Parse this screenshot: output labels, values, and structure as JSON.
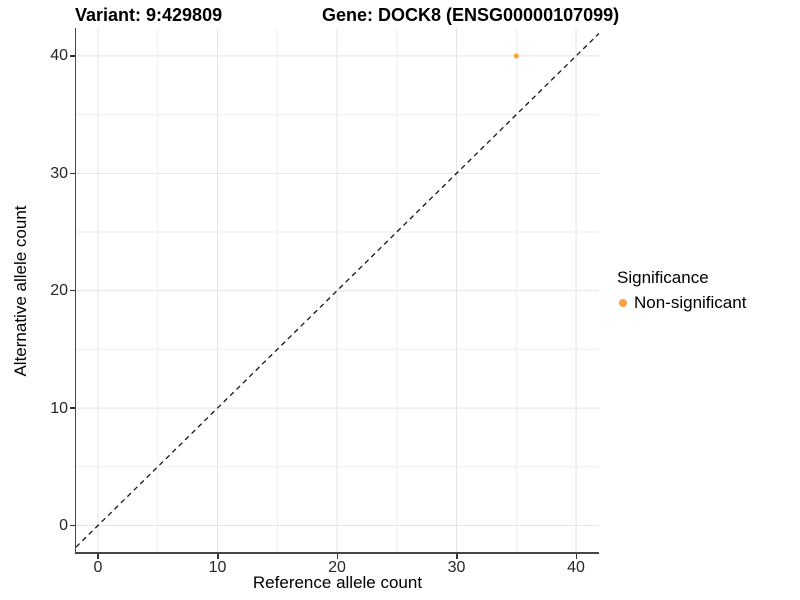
{
  "header": {
    "title_left": "Variant: 9:429809",
    "title_right": "Gene: DOCK8 (ENSG00000107099)"
  },
  "chart_data": {
    "type": "scatter",
    "title": "Variant: 9:429809  Gene: DOCK8 (ENSG00000107099)",
    "xlabel": "Reference allele count",
    "ylabel": "Alternative allele count",
    "x_ticks": [
      0,
      10,
      20,
      30,
      40
    ],
    "y_ticks": [
      0,
      10,
      20,
      30,
      40
    ],
    "x_minor_ticks": [
      5,
      15,
      25,
      35
    ],
    "y_minor_ticks": [
      5,
      15,
      25,
      35
    ],
    "xlim": [
      -1.84,
      41.92
    ],
    "ylim": [
      -2.26,
      42.38
    ],
    "grid": "major and minor, light gray on white",
    "identity_line": {
      "equation": "y = x",
      "style": "dashed",
      "color": "#141414"
    },
    "series": [
      {
        "name": "Non-significant",
        "color": "#F9A242",
        "points": [
          {
            "x": 35,
            "y": 40
          }
        ]
      }
    ],
    "legend": {
      "title": "Significance",
      "position": "right",
      "items": [
        {
          "label": "Non-significant",
          "color": "#F9A242"
        }
      ]
    }
  },
  "colors": {
    "background": "#FFFFFF",
    "grid_major": "#E4E4E4",
    "grid_minor": "#EFEFEF",
    "axis_line": "#474747",
    "tick_mark": "#333333",
    "tick_text": "#262626",
    "title_text": "#000000",
    "dashed_line": "#141414",
    "point": "#F9A242"
  }
}
